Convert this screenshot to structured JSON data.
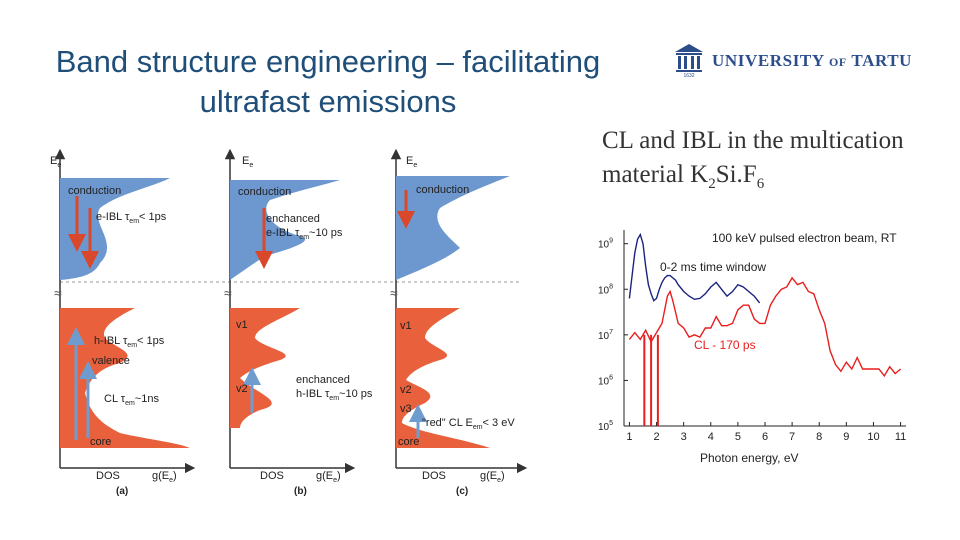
{
  "slide": {
    "title_line1": "Band structure engineering – facilitating",
    "title_line2": "ultrafast emissions",
    "logo": {
      "text_main": "UNIVERSITY",
      "text_of": "OF",
      "text_end": "TARTU",
      "year": "1632"
    },
    "subtitle": {
      "part1": "CL and IBL in the multication",
      "part2": "material  K",
      "sub1": "2",
      "part3": "Si.F",
      "sub2": "6"
    }
  },
  "band_diagrams": {
    "axis_energy": "E",
    "axis_energy_sub": "e",
    "panels": [
      {
        "id": "a",
        "caption": "(a)",
        "conduction": "conduction",
        "eibl_line1": "e-IBL τ",
        "eibl_sub": "em",
        "eibl_line1_end": "< 1ps",
        "hibl": "h-IBL τ",
        "hibl_sub": "em",
        "hibl_end": "< 1ps",
        "valence": "valence",
        "cl": "CL τ",
        "cl_sub": "em",
        "cl_end": "~1ns",
        "core": "core",
        "dos": "DOS",
        "g": "g(E",
        "g_sub": "e",
        "g_end": ")"
      },
      {
        "id": "b",
        "caption": "(b)",
        "conduction": "conduction",
        "enh1": "enchanced",
        "eibl": "e-IBL τ",
        "eibl_sub": "em",
        "eibl_end": "~10 ps",
        "v1": "v1",
        "v2": "v2",
        "enh2": "enchanced",
        "hibl": "h-IBL τ",
        "hibl_sub": "em",
        "hibl_end": "~10 ps",
        "dos": "DOS",
        "g": "g(E",
        "g_sub": "e",
        "g_end": ")"
      },
      {
        "id": "c",
        "caption": "(c)",
        "conduction": "conduction",
        "v1": "v1",
        "v2": "v2",
        "v3": "v3",
        "red": "\"red\" CL E",
        "red_sub": "em",
        "red_end": "< 3 eV",
        "core": "core",
        "dos": "DOS",
        "g": "g(E",
        "g_sub": "e",
        "g_end": ")"
      }
    ],
    "colors": {
      "conduction": "#6c97cf",
      "valence": "#e8613c",
      "arrow_red": "#d9482b",
      "arrow_blue": "#6f9ccf"
    }
  },
  "chart_data": {
    "type": "line",
    "title": "100 keV pulsed electron beam, RT",
    "xlabel": "Photon energy, eV",
    "ylabel": "",
    "x_ticks": [
      "1",
      "2",
      "3",
      "4",
      "5",
      "6",
      "7",
      "8",
      "9",
      "10",
      "11"
    ],
    "y_ticks": [
      "10^5",
      "10^6",
      "10^7",
      "10^8",
      "10^9"
    ],
    "xlim": [
      0.8,
      11.2
    ],
    "ylim_log10": [
      5,
      9.3
    ],
    "y_scale": "log",
    "annotations": [
      "0-2 ms time window",
      "CL - 170 ps"
    ],
    "series": [
      {
        "name": "0-2 ms time window",
        "color": "#1a237e",
        "x": [
          1.0,
          1.1,
          1.2,
          1.3,
          1.4,
          1.5,
          1.6,
          1.7,
          1.8,
          1.9,
          2.0,
          2.1,
          2.2,
          2.3,
          2.4,
          2.5,
          2.6,
          2.7,
          2.8,
          3.0,
          3.2,
          3.4,
          3.6,
          3.8,
          4.0,
          4.2,
          4.4,
          4.6,
          4.8,
          5.0,
          5.2,
          5.4,
          5.6,
          5.8
        ],
        "y": [
          7.8,
          8.3,
          8.8,
          9.1,
          9.2,
          9.0,
          8.5,
          8.1,
          7.9,
          7.75,
          7.8,
          8.0,
          8.15,
          8.25,
          8.3,
          8.3,
          8.25,
          8.2,
          8.1,
          7.95,
          7.85,
          7.78,
          7.8,
          7.9,
          8.05,
          8.15,
          8.0,
          7.85,
          7.95,
          8.1,
          8.05,
          7.95,
          7.85,
          7.7
        ]
      },
      {
        "name": "CL - 170 ps",
        "color": "#e81e1e",
        "x": [
          1.0,
          1.2,
          1.4,
          1.6,
          1.8,
          2.0,
          2.2,
          2.4,
          2.5,
          2.6,
          2.8,
          3.0,
          3.2,
          3.4,
          3.6,
          3.8,
          4.0,
          4.2,
          4.4,
          4.6,
          4.8,
          5.0,
          5.2,
          5.4,
          5.6,
          5.8,
          6.0,
          6.2,
          6.4,
          6.6,
          6.8,
          7.0,
          7.2,
          7.4,
          7.6,
          7.8,
          8.0,
          8.2,
          8.4,
          8.6,
          8.8,
          9.0,
          9.2,
          9.4,
          9.6,
          9.8,
          10.0,
          10.2,
          10.4,
          10.6,
          10.8,
          11.0
        ],
        "y": [
          6.95,
          7.0,
          6.95,
          7.05,
          6.9,
          7.0,
          7.3,
          7.8,
          8.0,
          7.7,
          7.3,
          7.1,
          7.0,
          6.95,
          7.0,
          7.1,
          7.2,
          7.35,
          7.25,
          7.15,
          7.3,
          7.5,
          7.7,
          7.6,
          7.4,
          7.2,
          7.3,
          7.6,
          7.9,
          7.95,
          8.1,
          8.2,
          8.15,
          8.1,
          8.0,
          7.85,
          7.6,
          7.2,
          6.7,
          6.3,
          6.25,
          6.35,
          6.3,
          6.45,
          6.3,
          6.2,
          6.3,
          6.2,
          6.15,
          6.25,
          6.2,
          6.2
        ]
      }
    ]
  }
}
